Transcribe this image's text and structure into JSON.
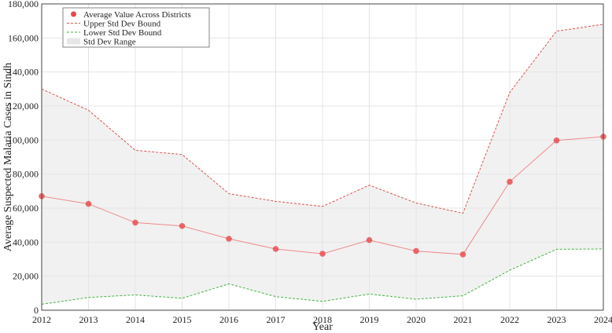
{
  "chart_data": {
    "type": "line",
    "title": "",
    "xlabel": "Year",
    "ylabel": "Average Suspected Malaria Cases in Sindh",
    "x": [
      2012,
      2013,
      2014,
      2015,
      2016,
      2017,
      2018,
      2019,
      2020,
      2021,
      2022,
      2023,
      2024
    ],
    "xlim": [
      2012,
      2024
    ],
    "ylim": [
      0,
      180000
    ],
    "yticks": [
      0,
      20000,
      40000,
      60000,
      80000,
      100000,
      120000,
      140000,
      160000,
      180000
    ],
    "ytick_labels": [
      "0",
      "20,000",
      "40,000",
      "60,000",
      "80,000",
      "100,000",
      "120,000",
      "140,000",
      "160,000",
      "180,000"
    ],
    "grid": true,
    "legend_position": "top-left",
    "series": [
      {
        "name": "Average Value Across Districts",
        "kind": "line-markers",
        "color": "#e8474a",
        "values": [
          67000,
          62500,
          51500,
          49500,
          42000,
          36000,
          33200,
          41200,
          34800,
          32800,
          75500,
          99800,
          102000
        ]
      },
      {
        "name": "Upper Std Dev Bound",
        "kind": "dashed-line",
        "color": "#d9534f",
        "values": [
          130000,
          117500,
          94000,
          91500,
          68500,
          64000,
          61000,
          73500,
          63000,
          57000,
          128000,
          164000,
          168000
        ]
      },
      {
        "name": "Lower Std Dev Bound",
        "kind": "dashed-line",
        "color": "#44b244",
        "values": [
          3500,
          7500,
          9000,
          7000,
          15500,
          8000,
          5200,
          9500,
          6500,
          8500,
          23500,
          35800,
          36000
        ]
      },
      {
        "name": "Std Dev Range",
        "kind": "band",
        "color": "#e6e6e6"
      }
    ]
  }
}
